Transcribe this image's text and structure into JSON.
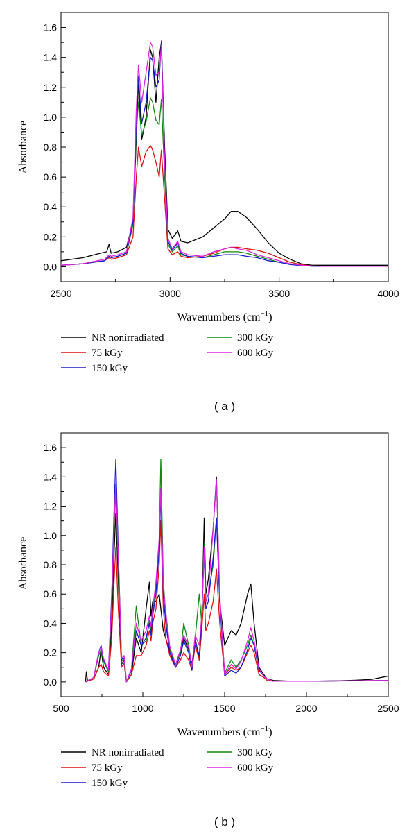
{
  "chart_data": [
    {
      "type": "line",
      "panel_label": "( a )",
      "xlabel": "Wavenumbers (cm",
      "xlabel_sup": "−1",
      "xlabel_tail": ")",
      "ylabel": "Absorbance",
      "xlim": [
        2500,
        4000
      ],
      "ylim": [
        -0.1,
        1.7
      ],
      "xticks": [
        2500,
        3000,
        3500,
        4000
      ],
      "yticks": [
        0.0,
        0.2,
        0.4,
        0.6,
        0.8,
        1.0,
        1.2,
        1.4,
        1.6
      ],
      "ytick_labels": [
        "0.0",
        "0.2",
        "0.4",
        "0.6",
        "0.8",
        "1.0",
        "1.2",
        "1.4",
        "1.6"
      ],
      "legend_position": "below",
      "series": [
        {
          "name": "NR nonirradiated",
          "color": "#000000",
          "x": [
            2500,
            2600,
            2680,
            2710,
            2720,
            2730,
            2760,
            2800,
            2830,
            2845,
            2855,
            2870,
            2890,
            2910,
            2920,
            2935,
            2950,
            2960,
            2975,
            2990,
            3010,
            3035,
            3050,
            3080,
            3150,
            3200,
            3250,
            3280,
            3310,
            3350,
            3400,
            3450,
            3500,
            3550,
            3600,
            3650,
            3700,
            3800,
            4000
          ],
          "y": [
            0.04,
            0.06,
            0.09,
            0.1,
            0.15,
            0.09,
            0.1,
            0.13,
            0.3,
            0.85,
            1.23,
            0.85,
            1.0,
            1.45,
            1.4,
            1.1,
            1.4,
            1.5,
            0.8,
            0.25,
            0.19,
            0.24,
            0.17,
            0.16,
            0.2,
            0.26,
            0.32,
            0.37,
            0.37,
            0.33,
            0.25,
            0.16,
            0.09,
            0.05,
            0.02,
            0.01,
            0.01,
            0.01,
            0.01
          ]
        },
        {
          "name": "75 kGy",
          "color": "#dd1111",
          "x": [
            2500,
            2600,
            2700,
            2720,
            2730,
            2760,
            2800,
            2830,
            2845,
            2855,
            2870,
            2890,
            2910,
            2920,
            2935,
            2950,
            2960,
            2975,
            2990,
            3010,
            3035,
            3050,
            3080,
            3150,
            3200,
            3250,
            3280,
            3310,
            3350,
            3400,
            3450,
            3500,
            3550,
            3600,
            3650,
            3700,
            3800,
            4000
          ],
          "y": [
            0.01,
            0.02,
            0.04,
            0.06,
            0.05,
            0.06,
            0.08,
            0.2,
            0.6,
            0.8,
            0.67,
            0.77,
            0.81,
            0.78,
            0.7,
            0.6,
            0.78,
            0.45,
            0.12,
            0.08,
            0.1,
            0.07,
            0.06,
            0.07,
            0.09,
            0.12,
            0.13,
            0.13,
            0.12,
            0.11,
            0.09,
            0.06,
            0.03,
            0.015,
            0.005,
            0.003,
            0.003,
            0.003
          ]
        },
        {
          "name": "150 kGy",
          "color": "#1a1acc",
          "x": [
            2500,
            2600,
            2700,
            2720,
            2730,
            2760,
            2800,
            2830,
            2845,
            2855,
            2870,
            2890,
            2910,
            2920,
            2935,
            2950,
            2960,
            2975,
            2990,
            3010,
            3035,
            3050,
            3080,
            3150,
            3200,
            3250,
            3280,
            3310,
            3350,
            3400,
            3450,
            3500,
            3550,
            3600,
            3650,
            3700,
            3800,
            4000
          ],
          "y": [
            0.01,
            0.02,
            0.04,
            0.07,
            0.06,
            0.07,
            0.09,
            0.3,
            0.95,
            1.27,
            0.96,
            1.1,
            1.4,
            1.38,
            1.2,
            1.25,
            1.51,
            0.7,
            0.17,
            0.11,
            0.16,
            0.09,
            0.07,
            0.06,
            0.07,
            0.08,
            0.08,
            0.08,
            0.07,
            0.06,
            0.04,
            0.03,
            0.015,
            0.008,
            0.004,
            0.003,
            0.003,
            0.003
          ]
        },
        {
          "name": "300 kGy",
          "color": "#118811",
          "x": [
            2500,
            2600,
            2700,
            2720,
            2730,
            2760,
            2800,
            2830,
            2845,
            2855,
            2870,
            2890,
            2910,
            2920,
            2935,
            2950,
            2960,
            2975,
            2990,
            3010,
            3035,
            3050,
            3080,
            3150,
            3200,
            3250,
            3280,
            3310,
            3350,
            3400,
            3450,
            3500,
            3550,
            3600,
            3650,
            3700,
            3800,
            4000
          ],
          "y": [
            0.01,
            0.02,
            0.04,
            0.07,
            0.06,
            0.07,
            0.09,
            0.28,
            0.9,
            1.1,
            0.88,
            0.97,
            1.13,
            1.1,
            0.98,
            0.95,
            1.12,
            0.6,
            0.15,
            0.1,
            0.14,
            0.08,
            0.07,
            0.06,
            0.08,
            0.1,
            0.1,
            0.1,
            0.09,
            0.07,
            0.05,
            0.03,
            0.015,
            0.008,
            0.004,
            0.003,
            0.003,
            0.003
          ]
        },
        {
          "name": "600 kGy",
          "color": "#dd22dd",
          "x": [
            2500,
            2600,
            2700,
            2720,
            2730,
            2760,
            2800,
            2830,
            2845,
            2855,
            2870,
            2890,
            2910,
            2920,
            2935,
            2950,
            2960,
            2975,
            2990,
            3010,
            3035,
            3050,
            3080,
            3150,
            3200,
            3250,
            3280,
            3310,
            3350,
            3400,
            3450,
            3500,
            3550,
            3600,
            3650,
            3700,
            3800,
            4000
          ],
          "y": [
            0.01,
            0.02,
            0.05,
            0.08,
            0.07,
            0.08,
            0.1,
            0.33,
            1.05,
            1.35,
            1.1,
            1.3,
            1.5,
            1.47,
            1.28,
            1.3,
            1.48,
            0.7,
            0.19,
            0.12,
            0.17,
            0.1,
            0.08,
            0.07,
            0.1,
            0.12,
            0.13,
            0.12,
            0.11,
            0.08,
            0.06,
            0.04,
            0.02,
            0.01,
            0.005,
            0.003,
            0.003,
            0.003
          ]
        }
      ]
    },
    {
      "type": "line",
      "panel_label": "( b )",
      "xlabel": "Wavenumbers (cm",
      "xlabel_sup": "−1",
      "xlabel_tail": ")",
      "ylabel": "Absorbance",
      "xlim": [
        500,
        2500
      ],
      "ylim": [
        -0.1,
        1.7
      ],
      "xticks": [
        500,
        1000,
        1500,
        2000,
        2500
      ],
      "yticks": [
        0.0,
        0.2,
        0.4,
        0.6,
        0.8,
        1.0,
        1.2,
        1.4,
        1.6
      ],
      "ytick_labels": [
        "0.0",
        "0.2",
        "0.4",
        "0.6",
        "0.8",
        "1.0",
        "1.2",
        "1.4",
        "1.6"
      ],
      "legend_position": "below",
      "series": [
        {
          "name": "NR nonirradiated",
          "color": "#000000",
          "x": [
            650,
            655,
            662,
            700,
            730,
            745,
            760,
            790,
            810,
            825,
            835,
            850,
            870,
            885,
            900,
            930,
            960,
            990,
            1020,
            1040,
            1050,
            1060,
            1080,
            1100,
            1110,
            1125,
            1140,
            1165,
            1200,
            1230,
            1250,
            1280,
            1300,
            1320,
            1345,
            1360,
            1375,
            1385,
            1400,
            1430,
            1450,
            1470,
            1500,
            1540,
            1570,
            1600,
            1640,
            1660,
            1680,
            1710,
            1740,
            1760,
            1800,
            1900,
            2000,
            2100,
            2200,
            2300,
            2400,
            2500
          ],
          "y": [
            0.0,
            0.07,
            0.01,
            0.02,
            0.1,
            0.22,
            0.1,
            0.05,
            0.4,
            0.9,
            1.15,
            0.7,
            0.12,
            0.15,
            0.0,
            0.05,
            0.3,
            0.2,
            0.5,
            0.68,
            0.45,
            0.55,
            0.55,
            0.6,
            0.5,
            0.35,
            0.3,
            0.2,
            0.12,
            0.2,
            0.3,
            0.22,
            0.12,
            0.3,
            0.15,
            0.4,
            1.12,
            0.6,
            0.7,
            1.05,
            1.4,
            0.55,
            0.25,
            0.35,
            0.32,
            0.4,
            0.6,
            0.67,
            0.4,
            0.1,
            0.05,
            0.02,
            0.01,
            0.005,
            0.006,
            0.005,
            0.008,
            0.012,
            0.018,
            0.04
          ]
        },
        {
          "name": "75 kGy",
          "color": "#dd1111",
          "x": [
            650,
            700,
            730,
            745,
            760,
            790,
            810,
            825,
            835,
            850,
            870,
            885,
            900,
            930,
            960,
            990,
            1020,
            1040,
            1050,
            1060,
            1080,
            1100,
            1110,
            1125,
            1140,
            1165,
            1200,
            1230,
            1250,
            1280,
            1300,
            1320,
            1345,
            1360,
            1375,
            1385,
            1400,
            1430,
            1450,
            1470,
            1500,
            1540,
            1570,
            1600,
            1640,
            1660,
            1680,
            1710,
            1740,
            1760,
            1800,
            1900,
            2000,
            2500
          ],
          "y": [
            0.0,
            0.02,
            0.1,
            0.12,
            0.07,
            0.04,
            0.3,
            0.7,
            0.92,
            0.5,
            0.1,
            0.13,
            0.0,
            0.05,
            0.18,
            0.18,
            0.25,
            0.35,
            0.28,
            0.4,
            0.5,
            0.8,
            1.1,
            0.5,
            0.3,
            0.18,
            0.1,
            0.15,
            0.2,
            0.15,
            0.08,
            0.25,
            0.15,
            0.35,
            0.6,
            0.35,
            0.4,
            0.55,
            0.77,
            0.4,
            0.05,
            0.1,
            0.08,
            0.1,
            0.2,
            0.25,
            0.2,
            0.05,
            0.03,
            0.01,
            0.005,
            0.005,
            0.005,
            0.01
          ]
        },
        {
          "name": "150 kGy",
          "color": "#1a1acc",
          "x": [
            650,
            700,
            730,
            745,
            760,
            790,
            810,
            825,
            835,
            850,
            870,
            885,
            900,
            930,
            960,
            990,
            1020,
            1040,
            1050,
            1060,
            1080,
            1100,
            1110,
            1125,
            1140,
            1165,
            1200,
            1230,
            1250,
            1280,
            1300,
            1320,
            1345,
            1360,
            1375,
            1385,
            1400,
            1430,
            1450,
            1470,
            1500,
            1540,
            1570,
            1600,
            1640,
            1660,
            1680,
            1710,
            1740,
            1760,
            1800,
            1900,
            2000,
            2500
          ],
          "y": [
            0.0,
            0.03,
            0.2,
            0.25,
            0.15,
            0.08,
            0.6,
            1.2,
            1.52,
            0.9,
            0.15,
            0.18,
            0.0,
            0.08,
            0.35,
            0.25,
            0.3,
            0.4,
            0.32,
            0.45,
            0.6,
            0.9,
            1.28,
            0.6,
            0.4,
            0.2,
            0.1,
            0.18,
            0.28,
            0.2,
            0.08,
            0.28,
            0.18,
            0.45,
            0.9,
            0.5,
            0.55,
            0.85,
            1.12,
            0.55,
            0.04,
            0.08,
            0.06,
            0.1,
            0.22,
            0.3,
            0.25,
            0.08,
            0.04,
            0.02,
            0.005,
            0.005,
            0.005,
            0.01
          ]
        },
        {
          "name": "300 kGy",
          "color": "#118811",
          "x": [
            650,
            700,
            730,
            745,
            760,
            790,
            810,
            825,
            835,
            850,
            870,
            885,
            900,
            930,
            960,
            990,
            1020,
            1040,
            1050,
            1060,
            1080,
            1100,
            1110,
            1125,
            1140,
            1165,
            1200,
            1230,
            1250,
            1280,
            1300,
            1320,
            1345,
            1360,
            1375,
            1385,
            1400,
            1430,
            1450,
            1470,
            1500,
            1540,
            1570,
            1600,
            1640,
            1660,
            1680,
            1710,
            1740,
            1760,
            1800,
            1900,
            2000,
            2500
          ],
          "y": [
            0.0,
            0.03,
            0.18,
            0.22,
            0.14,
            0.07,
            0.5,
            1.05,
            1.3,
            0.8,
            0.14,
            0.16,
            0.0,
            0.08,
            0.52,
            0.25,
            0.28,
            0.42,
            0.35,
            0.48,
            0.65,
            0.95,
            1.52,
            0.7,
            0.45,
            0.22,
            0.12,
            0.2,
            0.4,
            0.25,
            0.1,
            0.3,
            0.6,
            0.4,
            0.95,
            0.55,
            0.6,
            0.8,
            1.12,
            0.55,
            0.06,
            0.15,
            0.1,
            0.15,
            0.25,
            0.32,
            0.25,
            0.08,
            0.04,
            0.02,
            0.005,
            0.005,
            0.005,
            0.01
          ]
        },
        {
          "name": "600 kGy",
          "color": "#dd22dd",
          "x": [
            650,
            700,
            730,
            745,
            760,
            790,
            810,
            825,
            835,
            850,
            870,
            885,
            900,
            930,
            960,
            990,
            1020,
            1040,
            1050,
            1060,
            1080,
            1100,
            1110,
            1125,
            1140,
            1165,
            1200,
            1230,
            1250,
            1280,
            1300,
            1320,
            1345,
            1360,
            1375,
            1385,
            1400,
            1430,
            1450,
            1470,
            1500,
            1540,
            1570,
            1600,
            1640,
            1660,
            1680,
            1710,
            1740,
            1760,
            1800,
            1900,
            2000,
            2500
          ],
          "y": [
            0.0,
            0.03,
            0.2,
            0.24,
            0.16,
            0.08,
            0.55,
            1.1,
            1.35,
            0.85,
            0.16,
            0.18,
            0.0,
            0.09,
            0.4,
            0.28,
            0.35,
            0.45,
            0.38,
            0.5,
            0.68,
            0.98,
            1.32,
            0.65,
            0.48,
            0.24,
            0.12,
            0.22,
            0.32,
            0.24,
            0.1,
            0.32,
            0.25,
            0.45,
            0.92,
            0.55,
            0.6,
            1.05,
            1.38,
            0.6,
            0.05,
            0.12,
            0.09,
            0.14,
            0.28,
            0.37,
            0.28,
            0.09,
            0.04,
            0.02,
            0.005,
            0.005,
            0.005,
            0.01
          ]
        }
      ]
    }
  ]
}
